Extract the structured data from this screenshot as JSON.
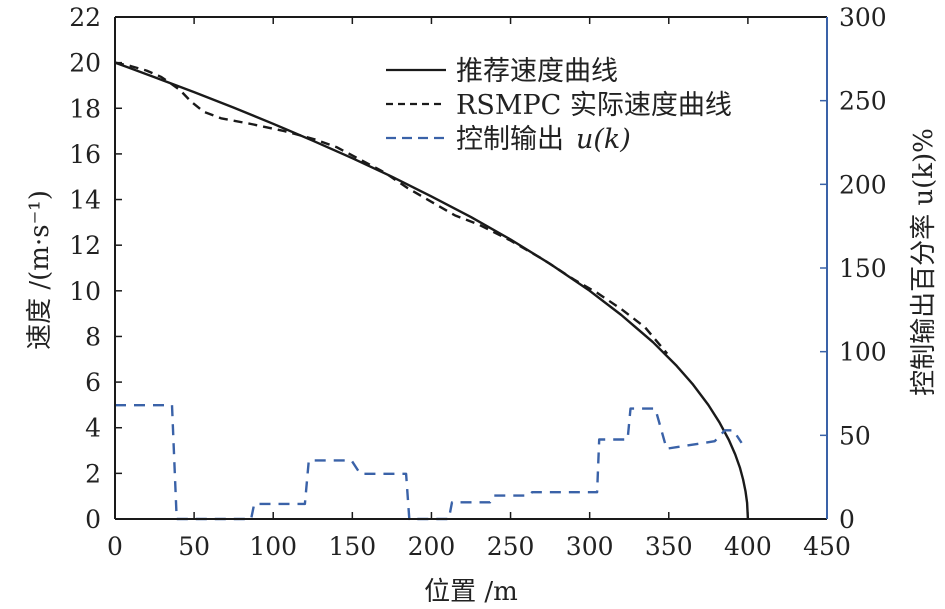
{
  "chart_data": {
    "type": "line",
    "title": "",
    "xlabel": "位置 /m",
    "ylabel": "速度 /(m·s⁻¹)",
    "ylabel_right": "控制输出百分率 u(k)%",
    "xlim": [
      0,
      450
    ],
    "ylim": [
      0,
      22
    ],
    "ylim_right": [
      0,
      300
    ],
    "grid": false,
    "legend_position": "top-right",
    "x_ticks": [
      "0",
      "50",
      "100",
      "150",
      "200",
      "250",
      "300",
      "350",
      "400",
      "450"
    ],
    "x_tick_values": [
      0,
      50,
      100,
      150,
      200,
      250,
      300,
      350,
      400,
      450
    ],
    "y_ticks": [
      "0",
      "2",
      "4",
      "6",
      "8",
      "10",
      "12",
      "14",
      "16",
      "18",
      "20",
      "22"
    ],
    "y_tick_values": [
      0,
      2,
      4,
      6,
      8,
      10,
      12,
      14,
      16,
      18,
      20,
      22
    ],
    "y_right_ticks": [
      "0",
      "50",
      "100",
      "150",
      "200",
      "250",
      "300"
    ],
    "y_right_tick_values": [
      0,
      50,
      100,
      150,
      200,
      250,
      300
    ],
    "series": [
      {
        "name": "推荐速度曲线",
        "axis": "left",
        "style": "solid",
        "color": "#1a1a1a",
        "function": "v = sqrt(400 - x)",
        "x": [
          0,
          25,
          50,
          75,
          100,
          125,
          150,
          175,
          200,
          225,
          250,
          275,
          300,
          320,
          340,
          355,
          365,
          375,
          382,
          388,
          392,
          395,
          397,
          398.5,
          399.5,
          400
        ],
        "values": [
          20.0,
          19.36,
          18.71,
          18.03,
          17.32,
          16.58,
          15.81,
          15.0,
          14.14,
          13.23,
          12.25,
          11.18,
          10.0,
          8.94,
          7.75,
          6.71,
          5.92,
          5.0,
          4.24,
          3.46,
          2.83,
          2.24,
          1.73,
          1.22,
          0.71,
          0.0
        ]
      },
      {
        "name": "RSMPC 实际速度曲线",
        "axis": "left",
        "style": "dashed",
        "color": "#1a1a1a",
        "x": [
          0,
          10,
          20,
          29,
          35,
          41,
          48,
          56,
          67,
          86,
          107,
          126,
          140,
          155,
          170,
          185,
          200,
          215,
          230,
          250,
          270,
          290,
          305,
          320,
          335,
          349
        ],
        "values": [
          20.0,
          19.85,
          19.65,
          19.38,
          19.1,
          18.8,
          18.3,
          17.85,
          17.56,
          17.31,
          17.0,
          16.64,
          16.3,
          15.75,
          15.2,
          14.5,
          13.9,
          13.3,
          12.9,
          12.2,
          11.4,
          10.5,
          9.9,
          9.2,
          8.4,
          7.25
        ]
      },
      {
        "name": "控制输出 u(k)",
        "axis": "right",
        "style": "dashed",
        "color": "#3a62a8",
        "x": [
          0,
          36,
          39,
          86,
          88,
          120,
          122.5,
          149.5,
          155,
          184,
          186,
          211,
          213,
          237,
          239,
          261.5,
          263.6,
          304.7,
          306,
          324,
          325.8,
          341.5,
          348.6,
          379,
          385.5,
          390.8,
          396
        ],
        "values": [
          68,
          68,
          0,
          0,
          9,
          9,
          35,
          35,
          27,
          27,
          0,
          0,
          10,
          10,
          14,
          14,
          16,
          16,
          47.5,
          47.5,
          66,
          66,
          42,
          46.5,
          53,
          53,
          45.5
        ]
      }
    ],
    "legend": [
      {
        "label": "推荐速度曲线",
        "style": "solid",
        "color": "#1a1a1a"
      },
      {
        "label": "RSMPC 实际速度曲线",
        "style": "dashed",
        "color": "#1a1a1a"
      },
      {
        "label": "控制输出",
        "label_math": "u(k)",
        "style": "dashed",
        "color": "#3a62a8"
      }
    ],
    "colors": {
      "axis": "#1a1a1a",
      "right_axis": "#3a62a8"
    }
  }
}
